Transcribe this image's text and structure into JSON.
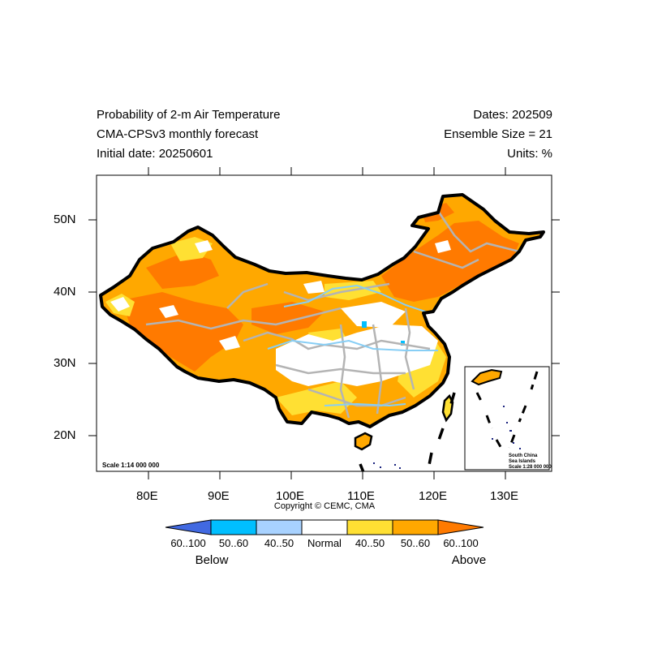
{
  "header": {
    "title_line1": "Probability of 2-m Air Temperature",
    "title_line2": "CMA-CPSv3 monthly forecast",
    "title_line3": "Initial date: 20250601",
    "right_line1": "Dates: 202509",
    "right_line2": "Ensemble Size = 21",
    "right_line3": "Units: %"
  },
  "axes": {
    "lat_labels": [
      "50N",
      "40N",
      "30N",
      "20N"
    ],
    "lon_labels": [
      "80E",
      "90E",
      "100E",
      "110E",
      "120E",
      "130E"
    ]
  },
  "map": {
    "scale_label": "Scale 1:14 000 000",
    "copyright": "Copyright © CEMC, CMA",
    "inset_line1": "South China",
    "inset_line2": "Sea Islands",
    "inset_line3": "Scale 1:28 000 000"
  },
  "colorbar": {
    "labels": [
      "60..100",
      "50..60",
      "40..50",
      "Normal",
      "40..50",
      "50..60",
      "60..100"
    ],
    "colors": [
      "#4169e1",
      "#00bfff",
      "#a8d2ff",
      "#ffffff",
      "#ffe033",
      "#ffa800",
      "#ff7a00"
    ],
    "below_label": "Below",
    "above_label": "Above"
  }
}
